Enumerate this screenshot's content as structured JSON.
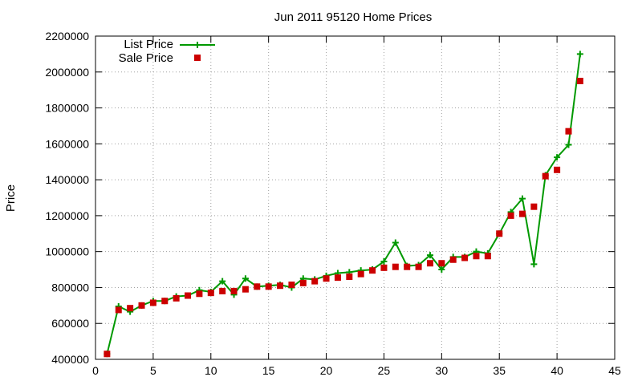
{
  "chart_data": {
    "type": "line",
    "title": "Jun 2011 95120 Home Prices",
    "xlabel": "",
    "ylabel": "Price",
    "xlim": [
      0,
      45
    ],
    "ylim": [
      400000,
      2200000
    ],
    "xticks": [
      0,
      5,
      10,
      15,
      20,
      25,
      30,
      35,
      40,
      45
    ],
    "yticks": [
      400000,
      600000,
      800000,
      1000000,
      1200000,
      1400000,
      1600000,
      1800000,
      2000000,
      2200000
    ],
    "grid": true,
    "legend_position": "top-left",
    "series": [
      {
        "name": "List Price",
        "style": "line-points",
        "color": "#009900",
        "x": [
          1,
          2,
          3,
          4,
          5,
          6,
          7,
          8,
          9,
          10,
          11,
          12,
          13,
          14,
          15,
          16,
          17,
          18,
          19,
          20,
          21,
          22,
          23,
          24,
          25,
          26,
          27,
          28,
          29,
          30,
          31,
          32,
          33,
          34,
          35,
          36,
          37,
          38,
          39,
          40,
          41,
          42
        ],
        "values": [
          430000,
          695000,
          665000,
          700000,
          725000,
          725000,
          750000,
          755000,
          785000,
          775000,
          835000,
          760000,
          850000,
          805000,
          810000,
          815000,
          800000,
          850000,
          845000,
          865000,
          880000,
          885000,
          895000,
          900000,
          945000,
          1050000,
          920000,
          925000,
          980000,
          900000,
          970000,
          970000,
          1000000,
          990000,
          1100000,
          1220000,
          1295000,
          930000,
          1425000,
          1525000,
          1595000,
          2100000
        ]
      },
      {
        "name": "Sale Price",
        "style": "points",
        "color": "#cc0000",
        "x": [
          1,
          2,
          3,
          4,
          5,
          6,
          7,
          8,
          9,
          10,
          11,
          12,
          13,
          14,
          15,
          16,
          17,
          18,
          19,
          20,
          21,
          22,
          23,
          24,
          25,
          26,
          27,
          28,
          29,
          30,
          31,
          32,
          33,
          34,
          35,
          36,
          37,
          38,
          39,
          40,
          41,
          42
        ],
        "values": [
          430000,
          675000,
          685000,
          700000,
          715000,
          725000,
          740000,
          755000,
          765000,
          770000,
          780000,
          780000,
          790000,
          805000,
          805000,
          810000,
          815000,
          825000,
          835000,
          850000,
          855000,
          860000,
          875000,
          895000,
          910000,
          915000,
          915000,
          915000,
          935000,
          935000,
          955000,
          965000,
          975000,
          975000,
          1100000,
          1200000,
          1210000,
          1250000,
          1420000,
          1455000,
          1670000,
          1950000
        ]
      }
    ]
  }
}
